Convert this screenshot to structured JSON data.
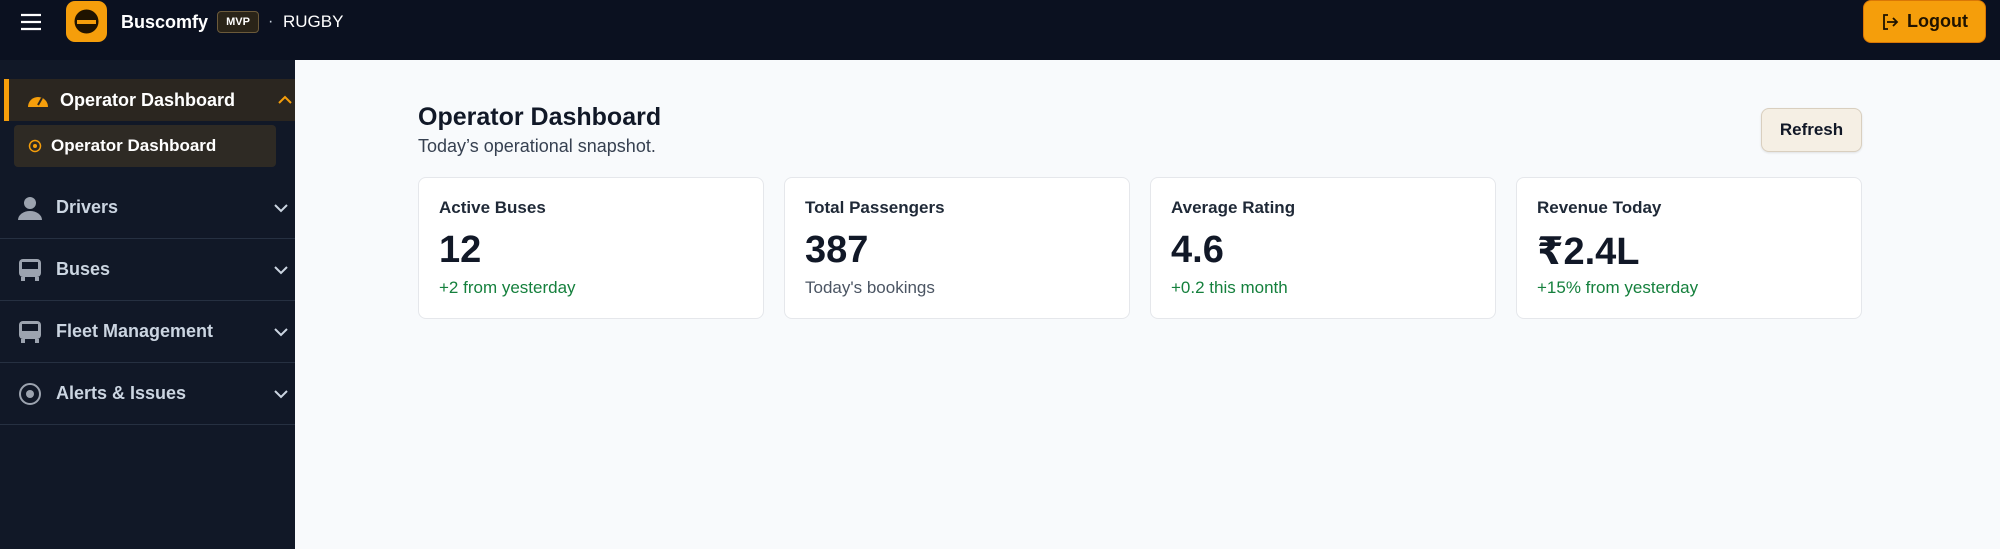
{
  "header": {
    "brand": "Buscomfy",
    "badge": "MVP",
    "separator": "·",
    "location": "RUGBY",
    "logout": "Logout"
  },
  "sidebar": {
    "items": [
      {
        "label": "Operator Dashboard",
        "children": [
          "Operator Dashboard"
        ]
      },
      {
        "label": "Drivers"
      },
      {
        "label": "Buses"
      },
      {
        "label": "Fleet Management"
      },
      {
        "label": "Alerts & Issues"
      }
    ]
  },
  "page": {
    "title": "Operator Dashboard",
    "subtitle": "Today’s operational snapshot.",
    "refresh": "Refresh"
  },
  "cards": [
    {
      "label": "Active Buses",
      "value": "12",
      "note": "+2 from yesterday"
    },
    {
      "label": "Total Passengers",
      "value": "387",
      "note": "Today's bookings"
    },
    {
      "label": "Average Rating",
      "value": "4.6",
      "note": "+0.2 this month"
    },
    {
      "label": "Revenue Today",
      "value": "₹2.4L",
      "note": "+15% from yesterday"
    }
  ]
}
